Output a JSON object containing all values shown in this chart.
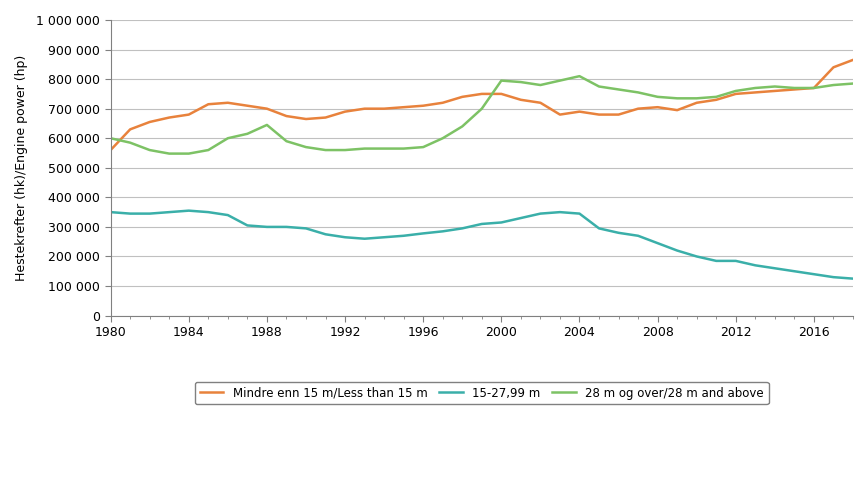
{
  "years": [
    1980,
    1981,
    1982,
    1983,
    1984,
    1985,
    1986,
    1987,
    1988,
    1989,
    1990,
    1991,
    1992,
    1993,
    1994,
    1995,
    1996,
    1997,
    1998,
    1999,
    2000,
    2001,
    2002,
    2003,
    2004,
    2005,
    2006,
    2007,
    2008,
    2009,
    2010,
    2011,
    2012,
    2013,
    2014,
    2015,
    2016,
    2017,
    2018
  ],
  "less_than_15m": [
    560000,
    630000,
    655000,
    670000,
    680000,
    715000,
    720000,
    710000,
    700000,
    675000,
    665000,
    670000,
    690000,
    700000,
    700000,
    705000,
    710000,
    720000,
    740000,
    750000,
    750000,
    730000,
    720000,
    680000,
    690000,
    680000,
    680000,
    700000,
    705000,
    695000,
    720000,
    730000,
    750000,
    755000,
    760000,
    765000,
    770000,
    840000,
    865000
  ],
  "from_15_to_27m": [
    350000,
    345000,
    345000,
    350000,
    355000,
    350000,
    340000,
    305000,
    300000,
    300000,
    295000,
    275000,
    265000,
    260000,
    265000,
    270000,
    278000,
    285000,
    295000,
    310000,
    315000,
    330000,
    345000,
    350000,
    345000,
    295000,
    280000,
    270000,
    245000,
    220000,
    200000,
    185000,
    185000,
    170000,
    160000,
    150000,
    140000,
    130000,
    125000
  ],
  "above_28m": [
    600000,
    585000,
    560000,
    548000,
    548000,
    560000,
    600000,
    615000,
    645000,
    590000,
    570000,
    560000,
    560000,
    565000,
    565000,
    565000,
    570000,
    600000,
    640000,
    700000,
    795000,
    790000,
    780000,
    795000,
    810000,
    775000,
    765000,
    755000,
    740000,
    735000,
    735000,
    740000,
    760000,
    770000,
    775000,
    770000,
    770000,
    780000,
    785000
  ],
  "orange_color": "#E8823C",
  "teal_color": "#3AAFA9",
  "green_color": "#7DC265",
  "ylabel": "Hestekrefter (hk)/Engine power (hp)",
  "ylim": [
    0,
    1000000
  ],
  "ytick_step": 100000,
  "xlim": [
    1980,
    2018
  ],
  "xtick_values": [
    1980,
    1984,
    1988,
    1992,
    1996,
    2000,
    2004,
    2008,
    2012,
    2016
  ],
  "legend_labels": [
    "Mindre enn 15 m/Less than 15 m",
    "15-27,99 m",
    "28 m og over/28 m and above"
  ],
  "background_color": "#ffffff",
  "plot_bg_color": "#ffffff",
  "grid_color": "#c0c0c0",
  "linewidth": 1.8
}
